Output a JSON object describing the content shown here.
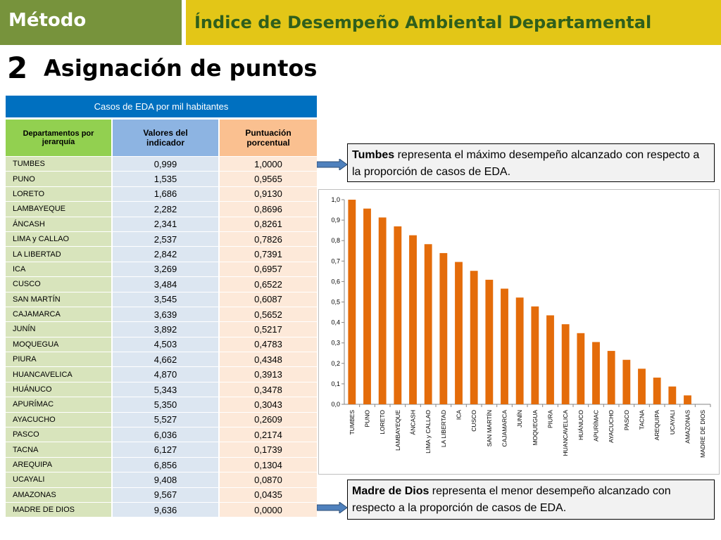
{
  "header": {
    "section": "Método",
    "title": "Índice de Desempeño Ambiental Departamental"
  },
  "step": {
    "number": "2",
    "title": "Asignación de puntos"
  },
  "table": {
    "title": "Casos de EDA por mil habitantes",
    "headers": {
      "department": "Departamentos por jerarquía",
      "value": "Valores del indicador",
      "score": "Puntuación porcentual"
    },
    "rows": [
      {
        "department": "TUMBES",
        "value": "0,999",
        "score": "1,0000"
      },
      {
        "department": "PUNO",
        "value": "1,535",
        "score": "0,9565"
      },
      {
        "department": "LORETO",
        "value": "1,686",
        "score": "0,9130"
      },
      {
        "department": "LAMBAYEQUE",
        "value": "2,282",
        "score": "0,8696"
      },
      {
        "department": "ÁNCASH",
        "value": "2,341",
        "score": "0,8261"
      },
      {
        "department": "LIMA y CALLAO",
        "value": "2,537",
        "score": "0,7826"
      },
      {
        "department": "LA LIBERTAD",
        "value": "2,842",
        "score": "0,7391"
      },
      {
        "department": "ICA",
        "value": "3,269",
        "score": "0,6957"
      },
      {
        "department": "CUSCO",
        "value": "3,484",
        "score": "0,6522"
      },
      {
        "department": "SAN MARTÍN",
        "value": "3,545",
        "score": "0,6087"
      },
      {
        "department": "CAJAMARCA",
        "value": "3,639",
        "score": "0,5652"
      },
      {
        "department": "JUNÍN",
        "value": "3,892",
        "score": "0,5217"
      },
      {
        "department": "MOQUEGUA",
        "value": "4,503",
        "score": "0,4783"
      },
      {
        "department": "PIURA",
        "value": "4,662",
        "score": "0,4348"
      },
      {
        "department": "HUANCAVELICA",
        "value": "4,870",
        "score": "0,3913"
      },
      {
        "department": "HUÁNUCO",
        "value": "5,343",
        "score": "0,3478"
      },
      {
        "department": "APURÍMAC",
        "value": "5,350",
        "score": "0,3043"
      },
      {
        "department": "AYACUCHO",
        "value": "5,527",
        "score": "0,2609"
      },
      {
        "department": "PASCO",
        "value": "6,036",
        "score": "0,2174"
      },
      {
        "department": "TACNA",
        "value": "6,127",
        "score": "0,1739"
      },
      {
        "department": "AREQUIPA",
        "value": "6,856",
        "score": "0,1304"
      },
      {
        "department": "UCAYALI",
        "value": "9,408",
        "score": "0,0870"
      },
      {
        "department": "AMAZONAS",
        "value": "9,567",
        "score": "0,0435"
      },
      {
        "department": "MADRE DE DIOS",
        "value": "9,636",
        "score": "0,0000"
      }
    ]
  },
  "callouts": {
    "top": {
      "bold": "Tumbes",
      "text": " representa el máximo desempeño alcanzado con respecto a la proporción de casos de EDA."
    },
    "bottom": {
      "bold": "Madre de Dios",
      "text": " representa el menor desempeño alcanzado con respecto a la proporción de casos de EDA."
    }
  },
  "colors": {
    "header_green": "#77933c",
    "header_yellow": "#e3c617",
    "table_title_blue": "#0070c0",
    "bar_orange": "#e46c0a",
    "arrow_blue": "#4f81bd"
  },
  "chart_data": {
    "type": "bar",
    "categories": [
      "TUMBES",
      "PUNO",
      "LORETO",
      "LAMBAYEQUE",
      "ÁNCASH",
      "LIMA y CALLAO",
      "LA LIBERTAD",
      "ICA",
      "CUSCO",
      "SAN MARTÍN",
      "CAJAMARCA",
      "JUNÍN",
      "MOQUEGUA",
      "PIURA",
      "HUANCAVELICA",
      "HUÁNUCO",
      "APURÍMAC",
      "AYACUCHO",
      "PASCO",
      "TACNA",
      "AREQUIPA",
      "UCAYALI",
      "AMAZONAS",
      "MADRE DE DIOS"
    ],
    "values": [
      1.0,
      0.9565,
      0.913,
      0.8696,
      0.8261,
      0.7826,
      0.7391,
      0.6957,
      0.6522,
      0.6087,
      0.5652,
      0.5217,
      0.4783,
      0.4348,
      0.3913,
      0.3478,
      0.3043,
      0.2609,
      0.2174,
      0.1739,
      0.1304,
      0.087,
      0.0435,
      0.0
    ],
    "ylim": [
      0,
      1.0
    ],
    "yticks": [
      "0,0",
      "0,1",
      "0,2",
      "0,3",
      "0,4",
      "0,5",
      "0,6",
      "0,7",
      "0,8",
      "0,9",
      "1,0"
    ],
    "grid": false,
    "legend": "none"
  }
}
